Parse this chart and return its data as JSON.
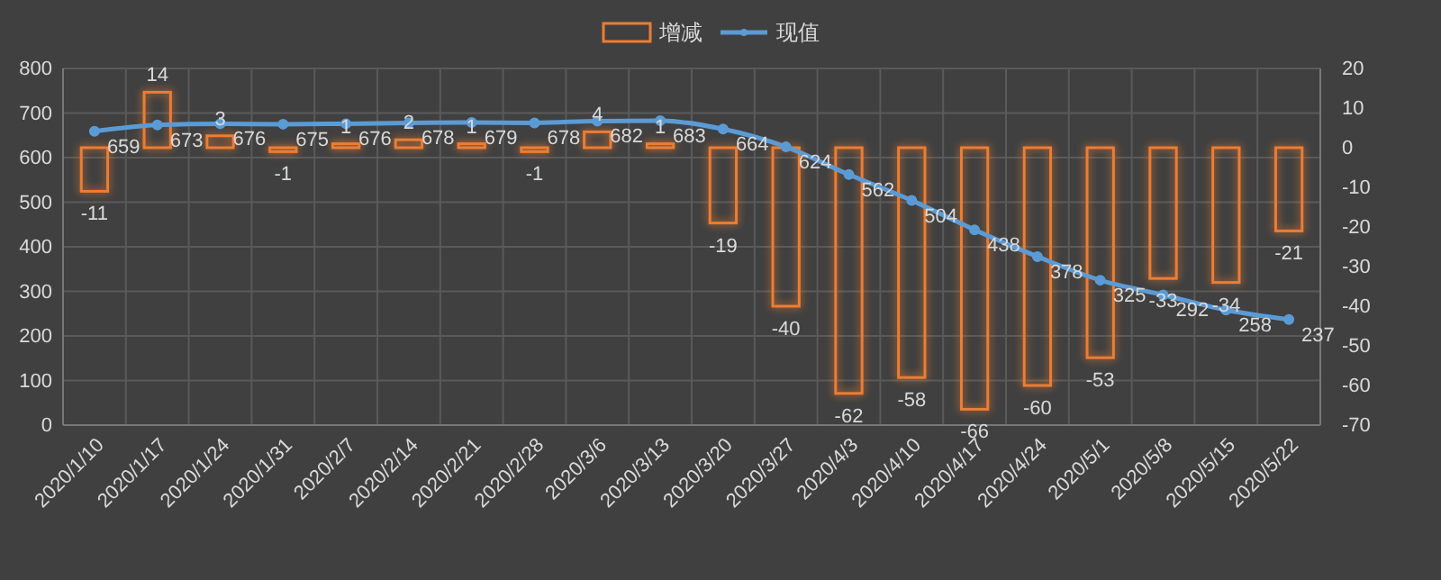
{
  "chart_data": {
    "type": "bar",
    "categories": [
      "2020/1/10",
      "2020/1/17",
      "2020/1/24",
      "2020/1/31",
      "2020/2/7",
      "2020/2/14",
      "2020/2/21",
      "2020/2/28",
      "2020/3/6",
      "2020/3/13",
      "2020/3/20",
      "2020/3/27",
      "2020/4/3",
      "2020/4/10",
      "2020/4/17",
      "2020/4/24",
      "2020/5/1",
      "2020/5/8",
      "2020/5/15",
      "2020/5/22"
    ],
    "series": [
      {
        "name": "增减",
        "axis": "y2",
        "color": "#ed7d31",
        "values": [
          -11,
          14,
          3,
          -1,
          1,
          2,
          1,
          -1,
          4,
          1,
          -19,
          -40,
          -62,
          -58,
          -66,
          -60,
          -53,
          -33,
          -34,
          -21
        ]
      },
      {
        "name": "现值",
        "type": "line",
        "color": "#5b9bd5",
        "values": [
          659,
          673,
          676,
          675,
          676,
          678,
          679,
          678,
          682,
          683,
          664,
          624,
          562,
          504,
          438,
          378,
          325,
          292,
          258,
          237
        ]
      }
    ],
    "ylim": [
      0,
      800
    ],
    "yticks": [
      0,
      100,
      200,
      300,
      400,
      500,
      600,
      700,
      800
    ],
    "y2lim": [
      -70,
      20
    ],
    "y2ticks": [
      -70,
      -60,
      -50,
      -40,
      -30,
      -20,
      -10,
      0,
      10,
      20
    ],
    "grid": true,
    "legend": "top",
    "data_labels": true,
    "marker": "circle",
    "line_style": "solid"
  }
}
